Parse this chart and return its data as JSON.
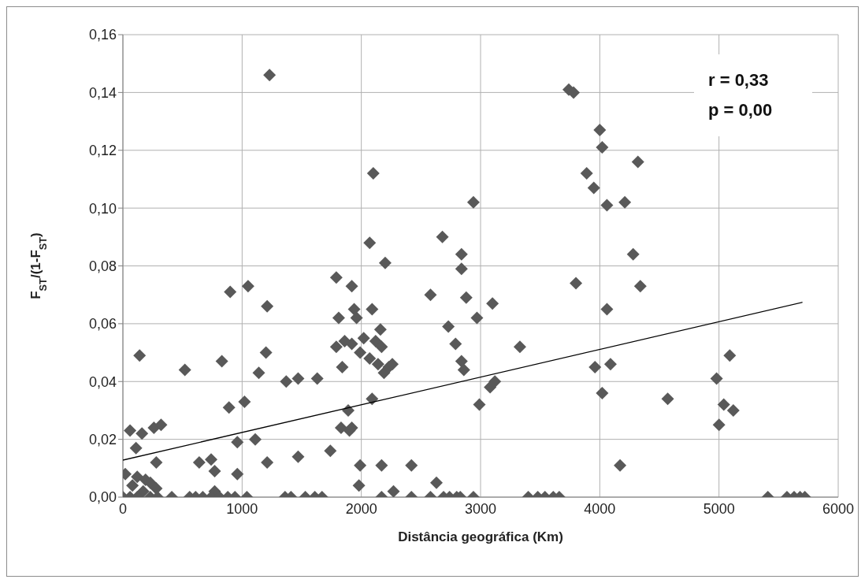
{
  "chart_data": {
    "type": "scatter",
    "xlabel": "Distância geográfica (Km)",
    "ylabel": "F$_{ST}$/(1-F$_{ST}$)",
    "annotations": [
      "r = 0,33",
      "p = 0,00"
    ],
    "xlim": [
      0,
      6000
    ],
    "xticks": [
      0,
      1000,
      2000,
      3000,
      4000,
      5000,
      6000
    ],
    "ylim": [
      0,
      0.16
    ],
    "yticks": [
      {
        "value": 0,
        "label": "0,00"
      },
      {
        "value": 0.02,
        "label": "0,02"
      },
      {
        "value": 0.04,
        "label": "0,04"
      },
      {
        "value": 0.06,
        "label": "0,06"
      },
      {
        "value": 0.08,
        "label": "0,08"
      },
      {
        "value": 0.1,
        "label": "0,10"
      },
      {
        "value": 0.12,
        "label": "0,12"
      },
      {
        "value": 0.14,
        "label": "0,14"
      },
      {
        "value": 0.16,
        "label": "0,16"
      }
    ],
    "grid": true,
    "marker": "diamond",
    "series": [
      {
        "color": "#595959",
        "x": [
          1230,
          2100,
          2940,
          2070,
          2680,
          2200,
          2840,
          2840,
          1790,
          1920,
          1050,
          900,
          2580,
          2880,
          1210,
          1810,
          1940,
          1960,
          2090,
          2160,
          2730,
          2790,
          2840,
          2860,
          1790,
          1860,
          1920,
          2020,
          2120,
          2170,
          1990,
          2070,
          2140,
          2190,
          2230,
          2260,
          1840,
          140,
          520,
          830,
          1200,
          1140,
          1370,
          1470,
          1630,
          2090,
          1890,
          890,
          1020,
          1830,
          1900,
          1920,
          60,
          160,
          260,
          320,
          110,
          960,
          1110,
          1740,
          280,
          1470,
          1210,
          640,
          740,
          770,
          960,
          1990,
          2170,
          2420,
          1980,
          2630,
          2270,
          20,
          120,
          190,
          230,
          80,
          280,
          170,
          770,
          3740,
          3780,
          4000,
          4020,
          4320,
          3890,
          3950,
          4060,
          4210,
          4280,
          3800,
          4340,
          3100,
          2970,
          4060,
          3330,
          3960,
          4090,
          5090,
          4980,
          3080,
          3120,
          2990,
          4020,
          4570,
          5040,
          5120,
          5000,
          4170,
          0,
          60,
          120,
          230,
          290,
          410,
          560,
          610,
          670,
          740,
          810,
          880,
          940,
          1040,
          1360,
          1410,
          1530,
          1610,
          1670,
          2170,
          2420,
          2580,
          2690,
          2740,
          2800,
          2830,
          2940,
          3400,
          3480,
          3540,
          3610,
          3660,
          5410,
          5570,
          5630,
          5680,
          5720
        ],
        "values": [
          0.146,
          0.112,
          0.102,
          0.088,
          0.09,
          0.081,
          0.084,
          0.079,
          0.076,
          0.073,
          0.073,
          0.071,
          0.07,
          0.069,
          0.066,
          0.062,
          0.065,
          0.062,
          0.065,
          0.058,
          0.059,
          0.053,
          0.047,
          0.044,
          0.052,
          0.054,
          0.053,
          0.055,
          0.054,
          0.052,
          0.05,
          0.048,
          0.046,
          0.043,
          0.045,
          0.046,
          0.045,
          0.049,
          0.044,
          0.047,
          0.05,
          0.043,
          0.04,
          0.041,
          0.041,
          0.034,
          0.03,
          0.031,
          0.033,
          0.024,
          0.023,
          0.024,
          0.023,
          0.022,
          0.024,
          0.025,
          0.017,
          0.019,
          0.02,
          0.016,
          0.012,
          0.014,
          0.012,
          0.012,
          0.013,
          0.009,
          0.008,
          0.011,
          0.011,
          0.011,
          0.004,
          0.005,
          0.002,
          0.008,
          0.007,
          0.006,
          0.005,
          0.004,
          0.003,
          0.002,
          0.002,
          0.141,
          0.14,
          0.127,
          0.121,
          0.116,
          0.112,
          0.107,
          0.101,
          0.102,
          0.084,
          0.074,
          0.073,
          0.067,
          0.062,
          0.065,
          0.052,
          0.045,
          0.046,
          0.049,
          0.041,
          0.038,
          0.04,
          0.032,
          0.036,
          0.034,
          0.032,
          0.03,
          0.025,
          0.011,
          0,
          0,
          0,
          0,
          0,
          0,
          0,
          0,
          0,
          0,
          0,
          0,
          0,
          0,
          0,
          0,
          0,
          0,
          0,
          0,
          0,
          0,
          0,
          0,
          0,
          0,
          0,
          0,
          0,
          0,
          0,
          0,
          0,
          0,
          0,
          0,
          0
        ]
      },
      {
        "type": "line",
        "color": "#000000",
        "marker": "none",
        "x": [
          0,
          5700
        ],
        "values": [
          0.0128,
          0.0674
        ]
      }
    ]
  }
}
